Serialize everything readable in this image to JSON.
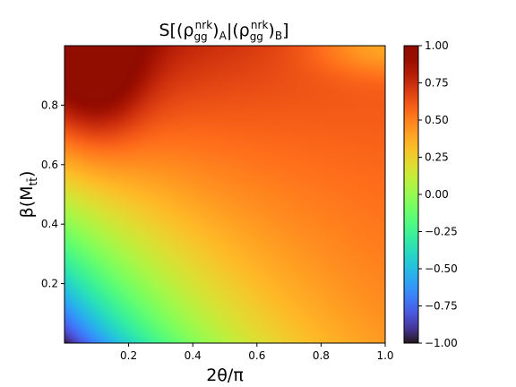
{
  "chart_data": {
    "type": "heatmap",
    "title": "S[(ρ_gg^nrk)_A|(ρ_gg^nrk)_B]",
    "title_parts": {
      "base": "S[(ρ",
      "sub1": "gg",
      "sup1": "nrk",
      "mid": ")",
      "subA": "A",
      "sep": "|(ρ",
      "sub2": "gg",
      "sup2": "nrk",
      "end": ")",
      "subB": "B",
      "close": "]"
    },
    "xlabel": "2θ/π",
    "ylabel": "β(M",
    "ylabel_sub": "tt̄",
    "ylabel_close": ")",
    "xlim": [
      0.0,
      1.0
    ],
    "ylim": [
      0.0,
      1.0
    ],
    "x_ticks": [
      0.2,
      0.4,
      0.6,
      0.8,
      1.0
    ],
    "x_tick_labels": [
      "0.2",
      "0.4",
      "0.6",
      "0.8",
      "1.0"
    ],
    "y_ticks": [
      0.2,
      0.4,
      0.6,
      0.8
    ],
    "y_tick_labels": [
      "0.2",
      "0.4",
      "0.6",
      "0.8"
    ],
    "colormap": "turbo",
    "value_range": [
      -1.0,
      1.0
    ],
    "colorbar_ticks": [
      1.0,
      0.75,
      0.5,
      0.25,
      0.0,
      -0.25,
      -0.5,
      -0.75,
      -1.0
    ],
    "colorbar_tick_labels": [
      "1.00",
      "0.75",
      "0.50",
      "0.25",
      "0.00",
      "−0.25",
      "−0.50",
      "−0.75",
      "−1.00"
    ],
    "grid": false,
    "features": {
      "max_near": {
        "x": 0.0,
        "y": 1.0,
        "value": 1.0
      },
      "min_near": {
        "y": 0.0,
        "value": -1.0
      },
      "plateau_value": 0.6
    }
  }
}
